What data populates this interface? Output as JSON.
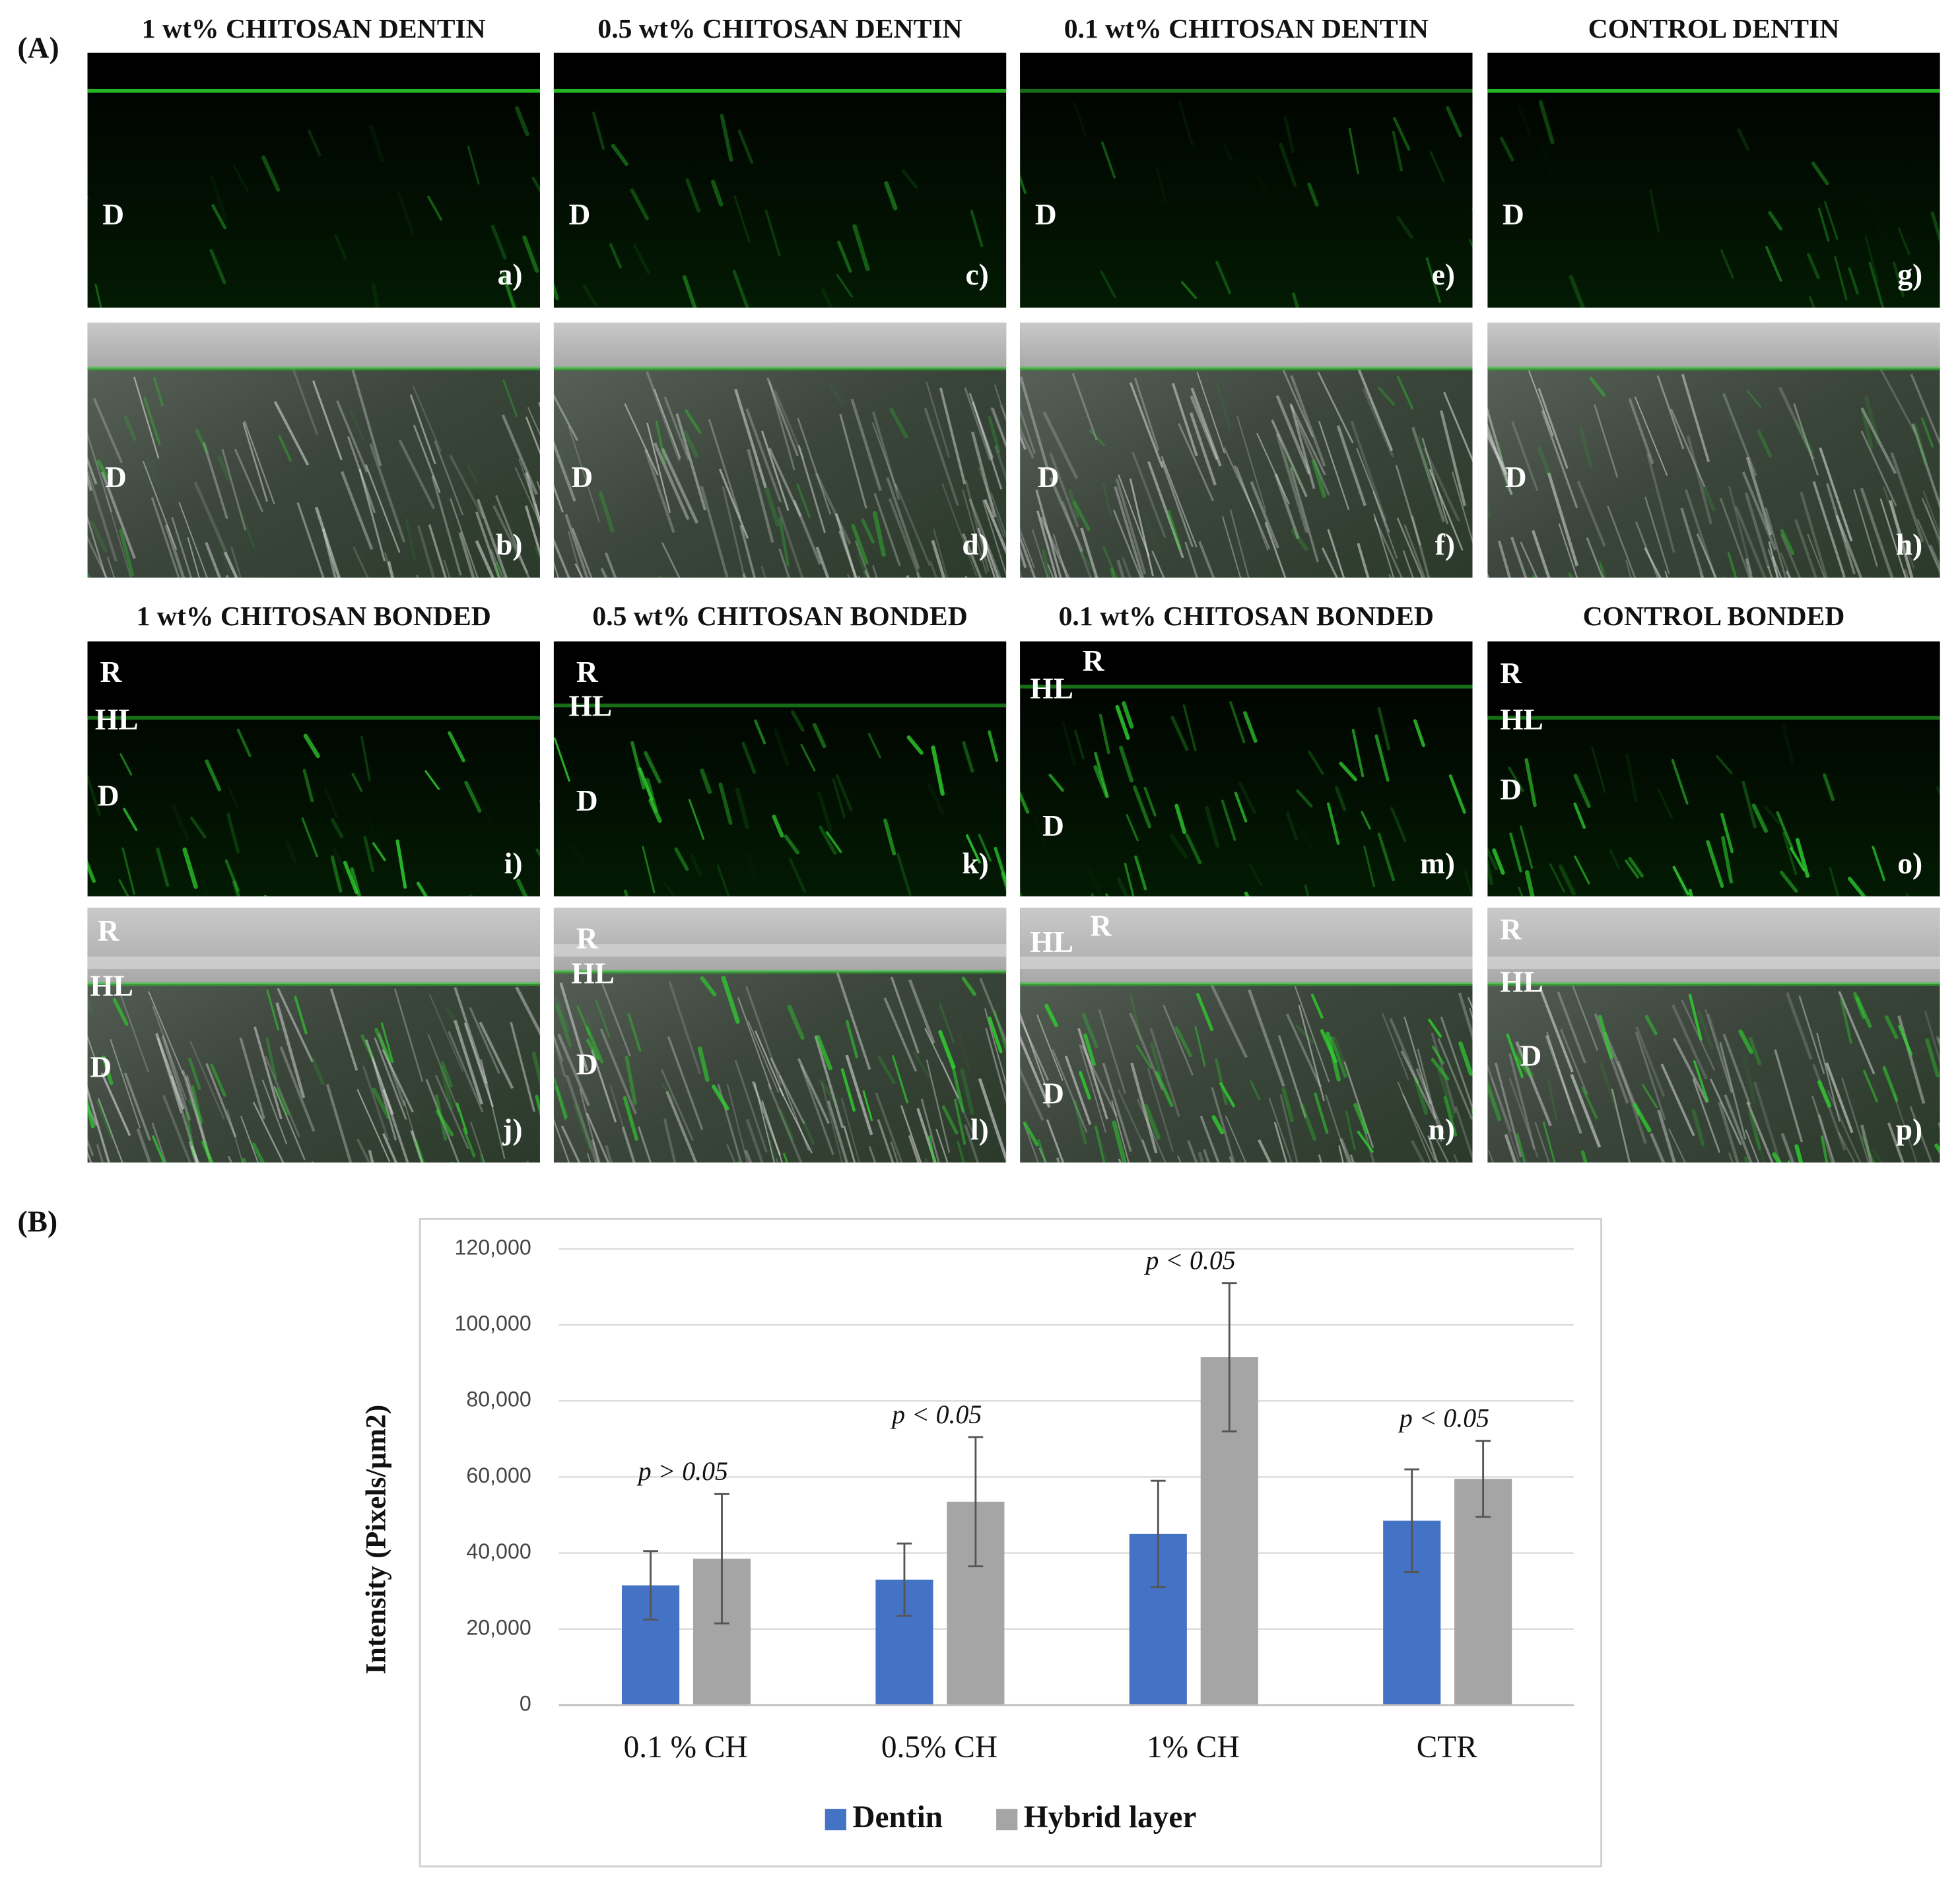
{
  "panel_a": {
    "label": "(A)",
    "headers": [
      [
        "1 wt% CHITOSAN DENTIN",
        "0.5 wt% CHITOSAN DENTIN",
        "0.1 wt% CHITOSAN DENTIN",
        "CONTROL DENTIN"
      ],
      [
        "1 wt% CHITOSAN BONDED",
        "0.5 wt% CHITOSAN BONDED",
        "0.1 wt% CHITOSAN BONDED",
        "CONTROL BONDED"
      ]
    ],
    "rows": [
      [
        {
          "letter": "a)",
          "marks": [
            "D"
          ]
        },
        {
          "letter": "c)",
          "marks": [
            "D"
          ]
        },
        {
          "letter": "e)",
          "marks": [
            "D"
          ]
        },
        {
          "letter": "g)",
          "marks": [
            "D"
          ]
        }
      ],
      [
        {
          "letter": "b)",
          "marks": [
            "D"
          ]
        },
        {
          "letter": "d)",
          "marks": [
            "D"
          ]
        },
        {
          "letter": "f)",
          "marks": [
            "D"
          ]
        },
        {
          "letter": "h)",
          "marks": [
            "D"
          ]
        }
      ],
      [
        {
          "letter": "i)",
          "marks": [
            "R",
            "HL",
            "D"
          ]
        },
        {
          "letter": "k)",
          "marks": [
            "R",
            "HL",
            "D"
          ]
        },
        {
          "letter": "m)",
          "marks": [
            "R",
            "HL",
            "D"
          ]
        },
        {
          "letter": "o)",
          "marks": [
            "R",
            "HL",
            "D"
          ]
        }
      ],
      [
        {
          "letter": "j)",
          "marks": [
            "R",
            "HL",
            "D"
          ]
        },
        {
          "letter": "l)",
          "marks": [
            "R",
            "HL",
            "D"
          ]
        },
        {
          "letter": "n)",
          "marks": [
            "R",
            "HL",
            "D"
          ]
        },
        {
          "letter": "p)",
          "marks": [
            "R",
            "HL",
            "D"
          ]
        }
      ]
    ]
  },
  "panel_b_label": "(B)",
  "chart_data": {
    "type": "bar",
    "y_label": "Intensity (Pixels/µm2)",
    "categories": [
      "0.1 % CH",
      "0.5% CH",
      "1% CH",
      "CTR"
    ],
    "series": [
      {
        "name": "Dentin",
        "color": "#4472c4",
        "values": [
          31500,
          33000,
          45000,
          48500
        ],
        "errors": [
          9000,
          9500,
          14000,
          13500
        ]
      },
      {
        "name": "Hybrid layer",
        "color": "#a5a5a5",
        "values": [
          38500,
          53500,
          91500,
          59500
        ],
        "errors": [
          17000,
          17000,
          19500,
          10000
        ]
      }
    ],
    "annotations": [
      "p > 0.05",
      "p < 0.05",
      "p < 0.05",
      "p < 0.05"
    ],
    "ylim": [
      0,
      120000
    ],
    "yticks": [
      0,
      {
        "value": 20000,
        "label": "20,000"
      },
      {
        "value": 40000,
        "label": "40,000"
      },
      {
        "value": 60000,
        "label": "60,000"
      },
      {
        "value": 80000,
        "label": "80,000"
      },
      {
        "value": 100000,
        "label": "100,000"
      },
      {
        "value": 120000,
        "label": "120,000"
      }
    ],
    "grid": true,
    "legend": "bottom"
  }
}
